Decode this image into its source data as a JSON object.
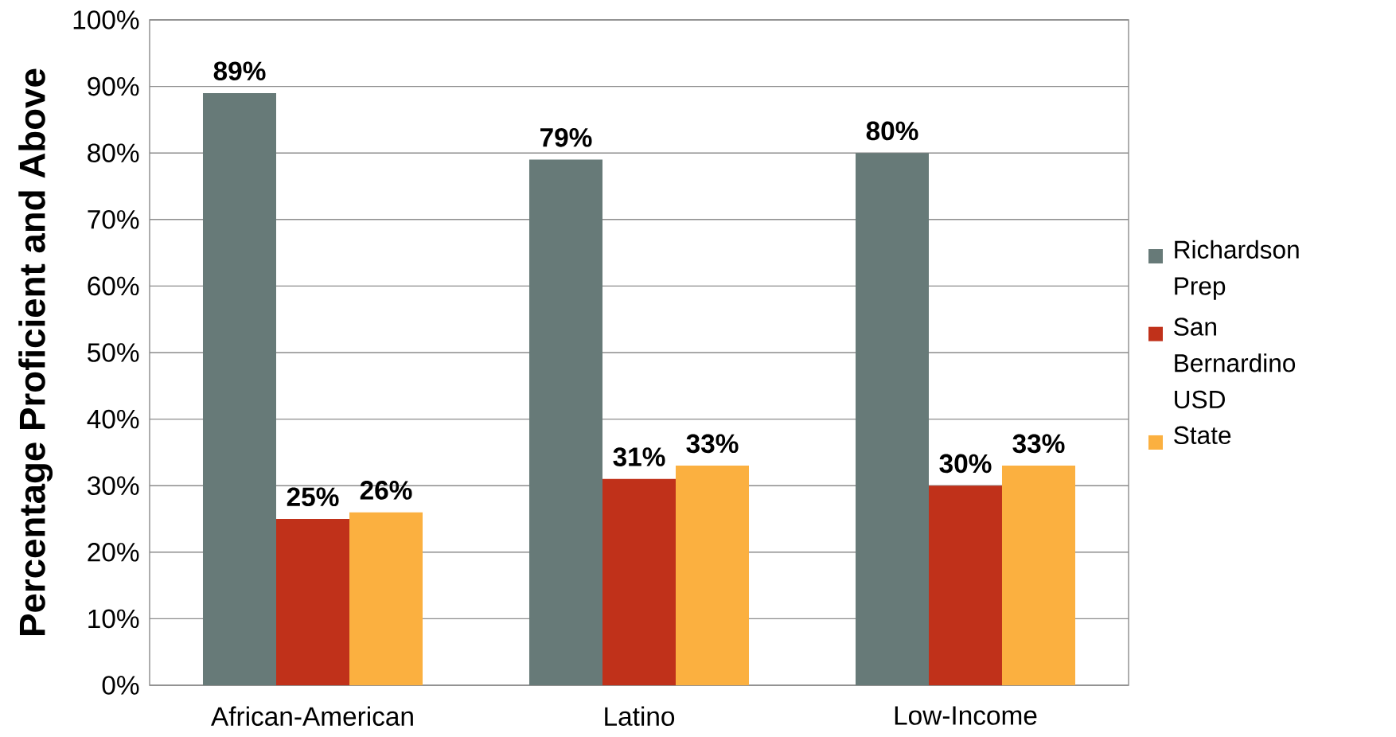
{
  "chart_data": {
    "type": "bar",
    "ylabel": "Percentage Proficient and Above",
    "categories": [
      "African-American",
      "Latino",
      "Low-Income"
    ],
    "series": [
      {
        "name": "Richardson Prep",
        "color": "#677a78",
        "values": [
          89,
          79,
          80
        ],
        "value_labels": [
          "89%",
          "79%",
          "80%"
        ]
      },
      {
        "name": "San Bernardino USD",
        "color": "#c0311a",
        "values": [
          25,
          31,
          30
        ],
        "value_labels": [
          "25%",
          "31%",
          "30%"
        ]
      },
      {
        "name": "State",
        "color": "#fbb040",
        "values": [
          26,
          33,
          33
        ],
        "value_labels": [
          "26%",
          "33%",
          "33%"
        ]
      }
    ],
    "ylim": [
      0,
      100
    ],
    "yticks": [
      {
        "value": 0,
        "label": "0%"
      },
      {
        "value": 10,
        "label": "10%"
      },
      {
        "value": 20,
        "label": "20%"
      },
      {
        "value": 30,
        "label": "30%"
      },
      {
        "value": 40,
        "label": "40%"
      },
      {
        "value": 50,
        "label": "50%"
      },
      {
        "value": 60,
        "label": "60%"
      },
      {
        "value": 70,
        "label": "70%"
      },
      {
        "value": 80,
        "label": "80%"
      },
      {
        "value": 90,
        "label": "90%"
      },
      {
        "value": 100,
        "label": "100%"
      }
    ],
    "grid": "y",
    "legend": "right"
  }
}
